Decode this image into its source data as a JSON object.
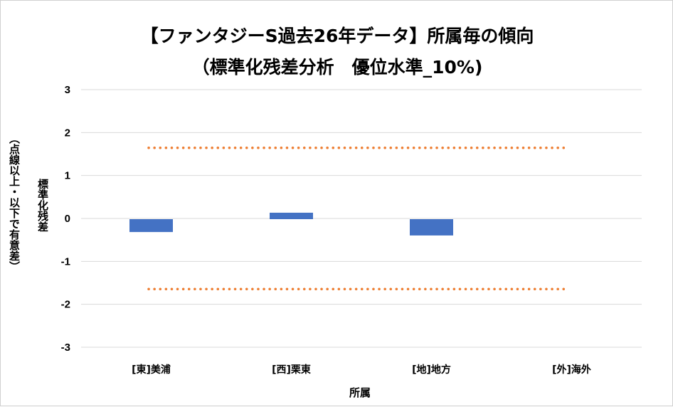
{
  "chart_data": {
    "type": "bar",
    "title": "【ファンタジーS過去26年データ】所属毎の傾向",
    "subtitle": "（標準化残差分析　優位水準_10%)",
    "xlabel": "所属",
    "ylabel_line1": "標準化残差",
    "ylabel_line2": "（点線以上・以下で有意差）",
    "categories": [
      "[東]美浦",
      "[西]栗東",
      "[地]地方",
      "[外]海外"
    ],
    "values": [
      -0.3,
      0.15,
      -0.38,
      0
    ],
    "ylim": [
      -3,
      3
    ],
    "yticks": [
      3,
      2,
      1,
      0,
      -1,
      -2,
      -3
    ],
    "threshold_lines": [
      1.645,
      -1.645
    ],
    "grid": true,
    "legend": "none",
    "colors": {
      "bar": "#4472C4",
      "threshold": "#ED7D31",
      "grid": "#d9d9d9"
    }
  }
}
